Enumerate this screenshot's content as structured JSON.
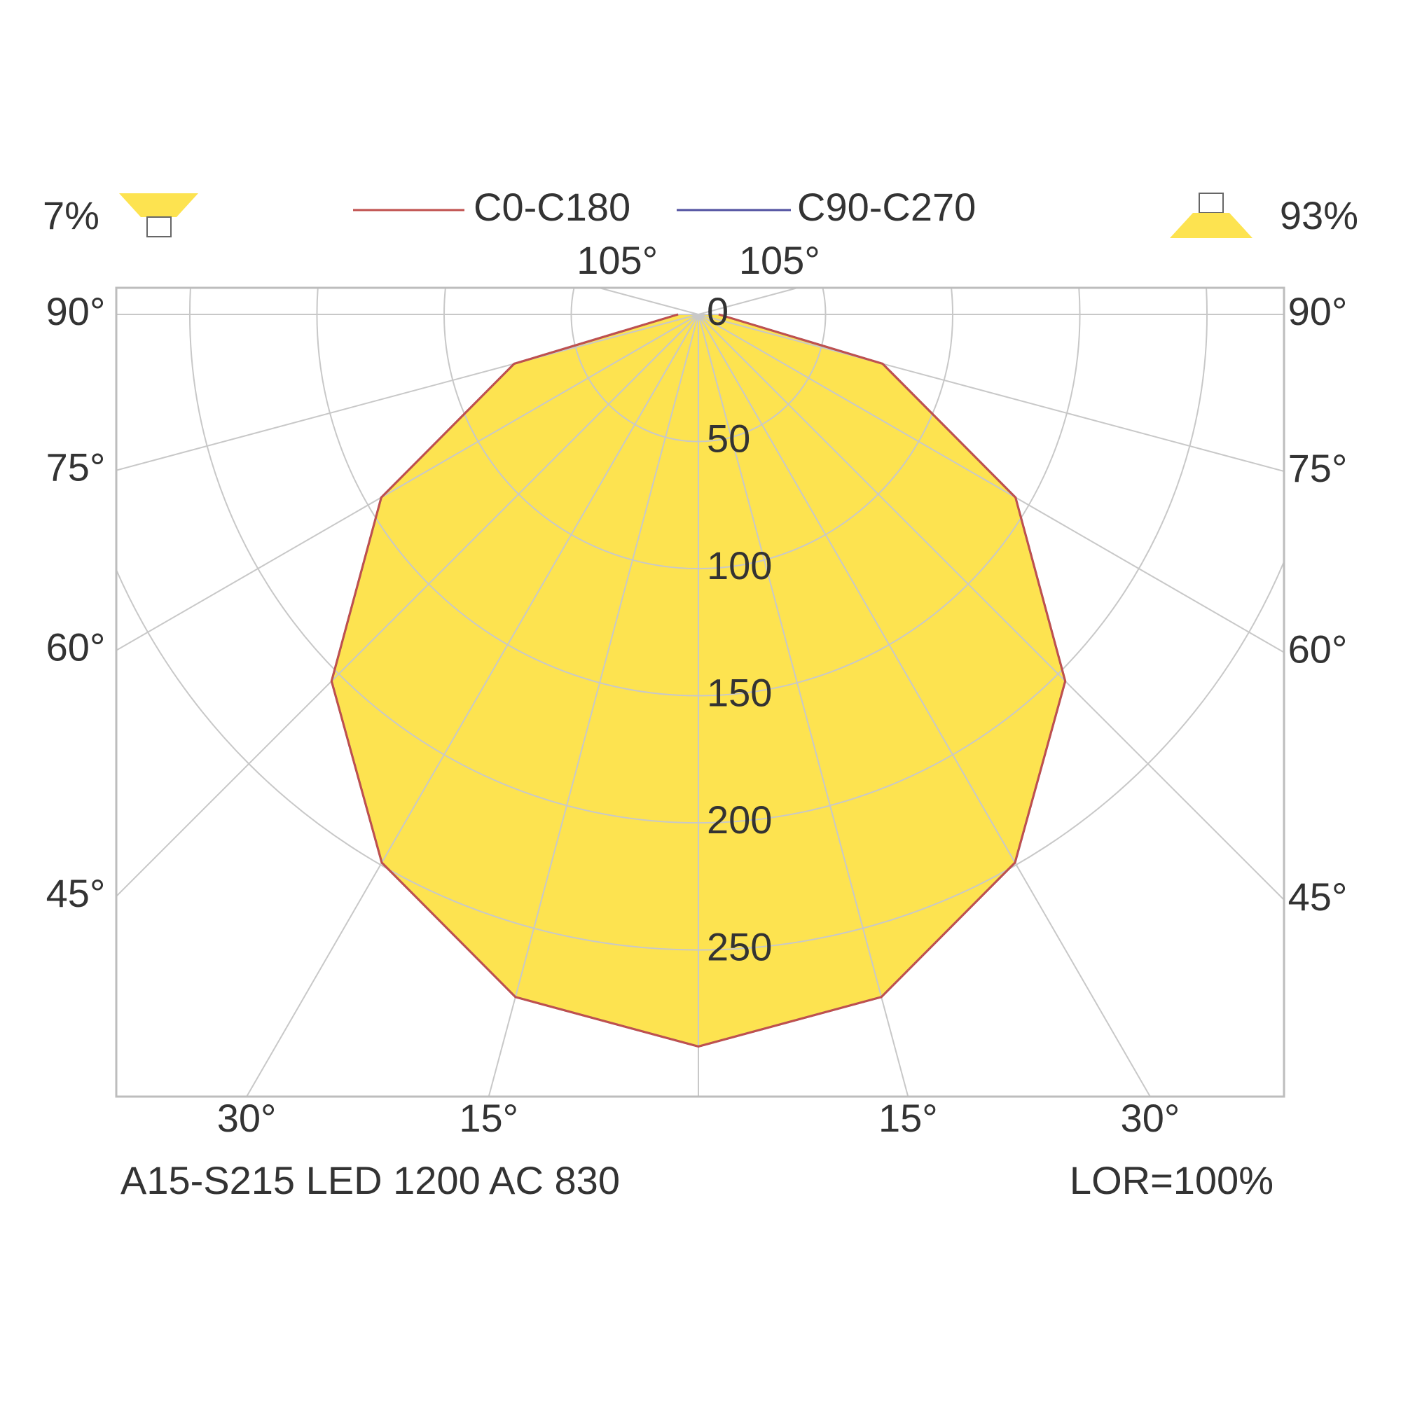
{
  "chart_data": {
    "type": "polar",
    "upward_share": "7%",
    "downward_share": "93%",
    "footer_left": "A15-S215 LED 1200 AC 830",
    "footer_right": "LOR=100%",
    "angles": [
      0,
      15,
      30,
      45,
      60,
      75,
      90
    ],
    "series": [
      {
        "name": "C0-C180",
        "color": "#c0504d",
        "values": [
          288,
          278,
          249,
          204,
          144,
          75,
          8
        ]
      },
      {
        "name": "C90-C270",
        "color": "#5050a0",
        "values": [
          288,
          278,
          249,
          204,
          144,
          75,
          8
        ]
      }
    ],
    "fill_color": "#fde350",
    "rlim": [
      0,
      300
    ],
    "rticks": [
      0,
      50,
      100,
      150,
      200,
      250
    ],
    "angle_ticks": [
      {
        "value": 15,
        "label": "15°"
      },
      {
        "value": 30,
        "label": "30°"
      },
      {
        "value": 45,
        "label": "45°"
      },
      {
        "value": 60,
        "label": "60°"
      },
      {
        "value": 75,
        "label": "75°"
      },
      {
        "value": 90,
        "label": "90°"
      },
      {
        "value": 105,
        "label": "105°"
      }
    ],
    "grid": true
  }
}
